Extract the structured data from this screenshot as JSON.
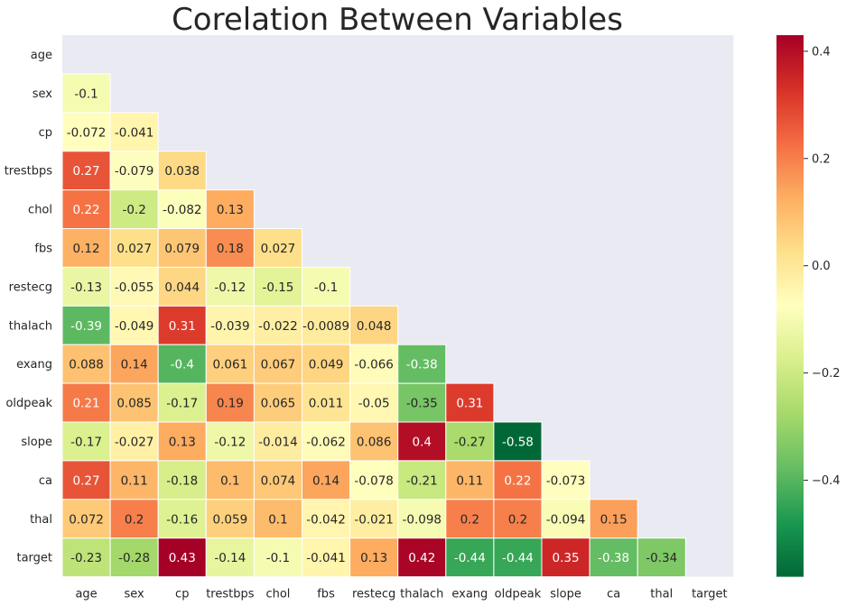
{
  "chart_data": {
    "type": "heatmap",
    "title": "Corelation Between Variables",
    "variables": [
      "age",
      "sex",
      "cp",
      "trestbps",
      "chol",
      "fbs",
      "restecg",
      "thalach",
      "exang",
      "oldpeak",
      "slope",
      "ca",
      "thal",
      "target"
    ],
    "mask": "upper-triangle-including-diagonal",
    "values": [
      [],
      [
        -0.1
      ],
      [
        -0.072,
        -0.041
      ],
      [
        0.27,
        -0.079,
        0.038
      ],
      [
        0.22,
        -0.2,
        -0.082,
        0.13
      ],
      [
        0.12,
        0.027,
        0.079,
        0.18,
        0.027
      ],
      [
        -0.13,
        -0.055,
        0.044,
        -0.12,
        -0.15,
        -0.1
      ],
      [
        -0.39,
        -0.049,
        0.31,
        -0.039,
        -0.022,
        -0.0089,
        0.048
      ],
      [
        0.088,
        0.14,
        -0.4,
        0.061,
        0.067,
        0.049,
        -0.066,
        -0.38
      ],
      [
        0.21,
        0.085,
        -0.17,
        0.19,
        0.065,
        0.011,
        -0.05,
        -0.35,
        0.31
      ],
      [
        -0.17,
        -0.027,
        0.13,
        -0.12,
        -0.014,
        -0.062,
        0.086,
        0.4,
        -0.27,
        -0.58
      ],
      [
        0.27,
        0.11,
        -0.18,
        0.1,
        0.074,
        0.14,
        -0.078,
        -0.21,
        0.11,
        0.22,
        -0.073
      ],
      [
        0.072,
        0.2,
        -0.16,
        0.059,
        0.1,
        -0.042,
        -0.021,
        -0.098,
        0.2,
        0.2,
        -0.094,
        0.15
      ],
      [
        -0.23,
        -0.28,
        0.43,
        -0.14,
        -0.1,
        -0.041,
        0.13,
        0.42,
        -0.44,
        -0.44,
        0.35,
        -0.38,
        -0.34
      ]
    ],
    "labels": [
      [],
      [
        "-0.1"
      ],
      [
        "-0.072",
        "-0.041"
      ],
      [
        "0.27",
        "-0.079",
        "0.038"
      ],
      [
        "0.22",
        "-0.2",
        "-0.082",
        "0.13"
      ],
      [
        "0.12",
        "0.027",
        "0.079",
        "0.18",
        "0.027"
      ],
      [
        "-0.13",
        "-0.055",
        "0.044",
        "-0.12",
        "-0.15",
        "-0.1"
      ],
      [
        "-0.39",
        "-0.049",
        "0.31",
        "-0.039",
        "-0.022",
        "-0.0089",
        "0.048"
      ],
      [
        "0.088",
        "0.14",
        "-0.4",
        "0.061",
        "0.067",
        "0.049",
        "-0.066",
        "-0.38"
      ],
      [
        "0.21",
        "0.085",
        "-0.17",
        "0.19",
        "0.065",
        "0.011",
        "-0.05",
        "-0.35",
        "0.31"
      ],
      [
        "-0.17",
        "-0.027",
        "0.13",
        "-0.12",
        "-0.014",
        "-0.062",
        "0.086",
        "0.4",
        "-0.27",
        "-0.58"
      ],
      [
        "0.27",
        "0.11",
        "-0.18",
        "0.1",
        "0.074",
        "0.14",
        "-0.078",
        "-0.21",
        "0.11",
        "0.22",
        "-0.073"
      ],
      [
        "0.072",
        "0.2",
        "-0.16",
        "0.059",
        "0.1",
        "-0.042",
        "-0.021",
        "-0.098",
        "0.2",
        "0.2",
        "-0.094",
        "0.15"
      ],
      [
        "-0.23",
        "-0.28",
        "0.43",
        "-0.14",
        "-0.1",
        "-0.041",
        "0.13",
        "0.42",
        "-0.44",
        "-0.44",
        "0.35",
        "-0.38",
        "-0.34"
      ]
    ],
    "colorscale": "RdYlGn_r",
    "vmin": -0.58,
    "vmax": 0.43,
    "colorbar_ticks": [
      0.4,
      0.2,
      0.0,
      -0.2,
      -0.4
    ],
    "colorbar_tick_labels": [
      "0.4",
      "0.2",
      "0.0",
      "−0.2",
      "−0.4"
    ],
    "colorbar_placement": "right",
    "background_color": "#eaeaf2"
  }
}
